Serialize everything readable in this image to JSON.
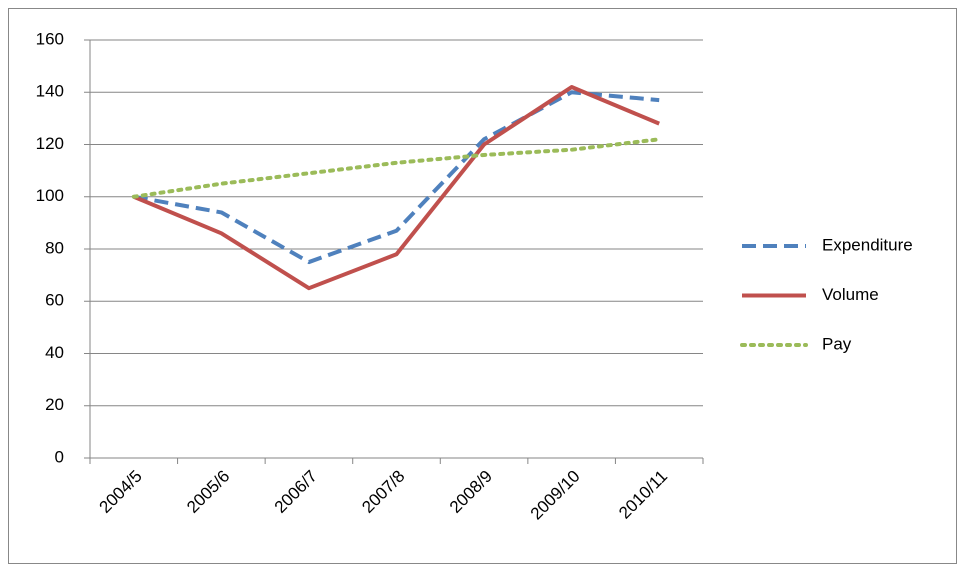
{
  "chart_data": {
    "type": "line",
    "categories": [
      "2004/5",
      "2005/6",
      "2006/7",
      "2007/8",
      "2008/9",
      "2009/10",
      "2010/11"
    ],
    "series": [
      {
        "name": "Expenditure",
        "color": "#4f81bd",
        "line_style": "dashed",
        "values": [
          100,
          94,
          75,
          87,
          122,
          140,
          137
        ]
      },
      {
        "name": "Volume",
        "color": "#c0504d",
        "line_style": "solid",
        "values": [
          100,
          86,
          65,
          78,
          120,
          142,
          128
        ]
      },
      {
        "name": "Pay",
        "color": "#9bbb59",
        "line_style": "dotted",
        "values": [
          100,
          105,
          109,
          113,
          116,
          118,
          122
        ]
      }
    ],
    "ylim": [
      0,
      160
    ],
    "yticks": [
      0,
      20,
      40,
      60,
      80,
      100,
      120,
      140,
      160
    ],
    "grid": true,
    "legend": "right"
  }
}
